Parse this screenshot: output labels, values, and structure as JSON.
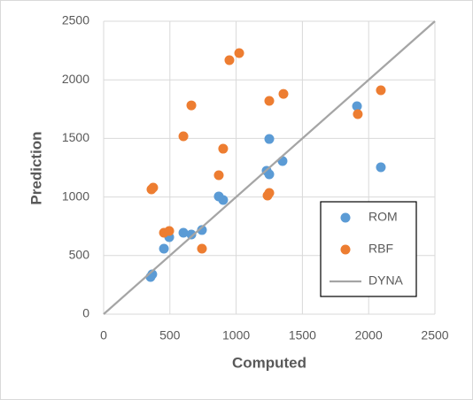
{
  "chart_data": {
    "type": "scatter",
    "x_label": "Computed",
    "y_label": "Prediction",
    "xlim": [
      0,
      2500
    ],
    "ylim": [
      0,
      2500
    ],
    "xticks": [
      0,
      500,
      1000,
      1500,
      2000,
      2500
    ],
    "yticks": [
      0,
      500,
      1000,
      1500,
      2000,
      2500
    ],
    "grid": true,
    "legend": "lower-right",
    "series": [
      {
        "name": "ROM",
        "color": "#5b9bd5",
        "style": "markers",
        "x": [
          367,
          354,
          455,
          495,
          602,
          662,
          742,
          869,
          902,
          1230,
          1250,
          1250,
          1350,
          1912,
          2092
        ],
        "values": [
          340,
          317,
          559,
          657,
          695,
          680,
          718,
          1005,
          974,
          1224,
          1193,
          1495,
          1307,
          1775,
          1254
        ]
      },
      {
        "name": "RBF",
        "color": "#ed7d31",
        "style": "markers",
        "x": [
          361,
          374,
          455,
          495,
          602,
          662,
          742,
          869,
          902,
          949,
          1023,
          1237,
          1250,
          1250,
          1357,
          1918,
          2092
        ],
        "values": [
          1065,
          1080,
          695,
          710,
          1518,
          1782,
          559,
          1186,
          1412,
          2168,
          2228,
          1012,
          1035,
          1820,
          1880,
          1707,
          1911
        ]
      },
      {
        "name": "DYNA",
        "color": "#a5a5a5",
        "style": "line",
        "x": [
          0,
          2500
        ],
        "values": [
          0,
          2500
        ]
      }
    ]
  }
}
